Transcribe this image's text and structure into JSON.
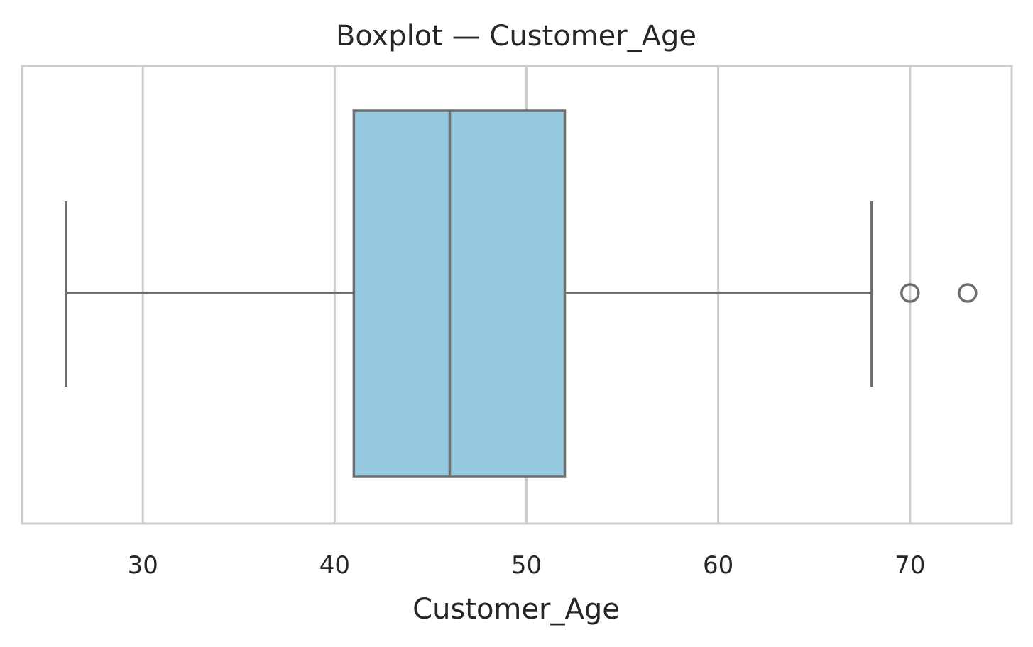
{
  "chart_data": {
    "type": "box",
    "title": "Boxplot — Customer_Age",
    "xlabel": "Customer_Age",
    "ylabel": "",
    "xlim": [
      23.7,
      75.3
    ],
    "xticks": [
      30,
      40,
      50,
      60,
      70
    ],
    "grid": true,
    "box": {
      "whisker_low": 26,
      "q1": 41,
      "median": 46,
      "q3": 52,
      "whisker_high": 68,
      "outliers": [
        70,
        73
      ]
    },
    "colors": {
      "box_fill": "#95c9df",
      "line": "#6e6e6e",
      "grid": "#cccccc",
      "spine": "#cccccc",
      "text": "#262626"
    }
  }
}
